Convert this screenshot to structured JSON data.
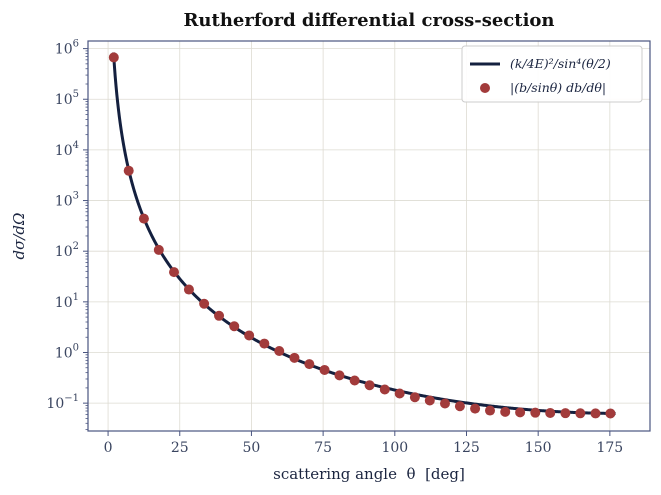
{
  "chart_data": {
    "type": "line+scatter",
    "title": "Rutherford differential cross-section",
    "xlabel": "scattering angle  θ  [deg]",
    "ylabel": "dσ/dΩ",
    "xlim": [
      -7,
      189
    ],
    "ylim_log10": [
      -1.55,
      6.15
    ],
    "yscale": "log",
    "grid": true,
    "legend_position": "top-right",
    "x_ticks": [
      {
        "value": 0,
        "label": "0"
      },
      {
        "value": 25,
        "label": "25"
      },
      {
        "value": 50,
        "label": "50"
      },
      {
        "value": 75,
        "label": "75"
      },
      {
        "value": 100,
        "label": "100"
      },
      {
        "value": 125,
        "label": "125"
      },
      {
        "value": 150,
        "label": "150"
      },
      {
        "value": 175,
        "label": "175"
      }
    ],
    "y_ticks": [
      {
        "exp": -1,
        "base": "10",
        "sup": "−1"
      },
      {
        "exp": 0,
        "base": "10",
        "sup": "0"
      },
      {
        "exp": 1,
        "base": "10",
        "sup": "1"
      },
      {
        "exp": 2,
        "base": "10",
        "sup": "2"
      },
      {
        "exp": 3,
        "base": "10",
        "sup": "3"
      },
      {
        "exp": 4,
        "base": "10",
        "sup": "4"
      },
      {
        "exp": 5,
        "base": "10",
        "sup": "5"
      },
      {
        "exp": 6,
        "base": "10",
        "sup": "6"
      }
    ],
    "curve": {
      "name": "(k/4E)²/sin⁴(θ/2)",
      "color": "#14203f",
      "theta_range": [
        1.6,
        177
      ],
      "scale_coefficient": 0.0625
    },
    "points": {
      "name": "|(b/sinθ) db/dθ|",
      "color": "#a23b3b",
      "theta": [
        2,
        7.2,
        12.5,
        17.7,
        23,
        28.2,
        33.5,
        38.7,
        44,
        49.2,
        54.5,
        59.7,
        65,
        70.2,
        75.5,
        80.7,
        86,
        91.2,
        96.5,
        101.7,
        107,
        112.2,
        117.5,
        122.7,
        128,
        133.2,
        138.5,
        143.7,
        149,
        154.2,
        159.5,
        164.7,
        170,
        175.2
      ],
      "value": [
        670000,
        3880,
        440,
        106,
        38.6,
        17.5,
        9.16,
        5.3,
        3.3,
        2.17,
        1.5,
        1.07,
        0.785,
        0.59,
        0.452,
        0.353,
        0.28,
        0.226,
        0.186,
        0.155,
        0.131,
        0.1128,
        0.0984,
        0.087,
        0.0781,
        0.0714,
        0.0672,
        0.0658,
        0.0648,
        0.064,
        0.0634,
        0.063,
        0.0627,
        0.0626
      ]
    },
    "colors": {
      "grid": "#dddbd2",
      "frame": "#4a5580"
    }
  }
}
